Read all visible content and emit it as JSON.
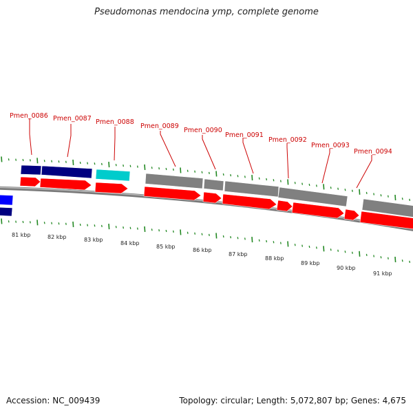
{
  "title": "Pseudomonas mendocina ymp, complete genome",
  "footer": {
    "accession": "Accession: NC_009439",
    "summary": "Topology: circular; Length: 5,072,807 bp; Genes: 4,675"
  },
  "colors": {
    "cds": "#ff0000",
    "gene_gray": "#808080",
    "gene_navy": "#000080",
    "gene_cyan": "#00cccc",
    "gene_blue": "#0000ff",
    "tick": "#228822",
    "label": "#cc0000",
    "backbone": "#8c8c8c"
  },
  "kbp_labels": [
    "81 kbp",
    "82 kbp",
    "83 kbp",
    "84 kbp",
    "85 kbp",
    "86 kbp",
    "87 kbp",
    "88 kbp",
    "89 kbp",
    "90 kbp",
    "91 kbp"
  ],
  "gene_labels": [
    "Pmen_0086",
    "Pmen_0087",
    "Pmen_0088",
    "Pmen_0089",
    "Pmen_0090",
    "Pmen_0091",
    "Pmen_0092",
    "Pmen_0093",
    "Pmen_0094"
  ]
}
